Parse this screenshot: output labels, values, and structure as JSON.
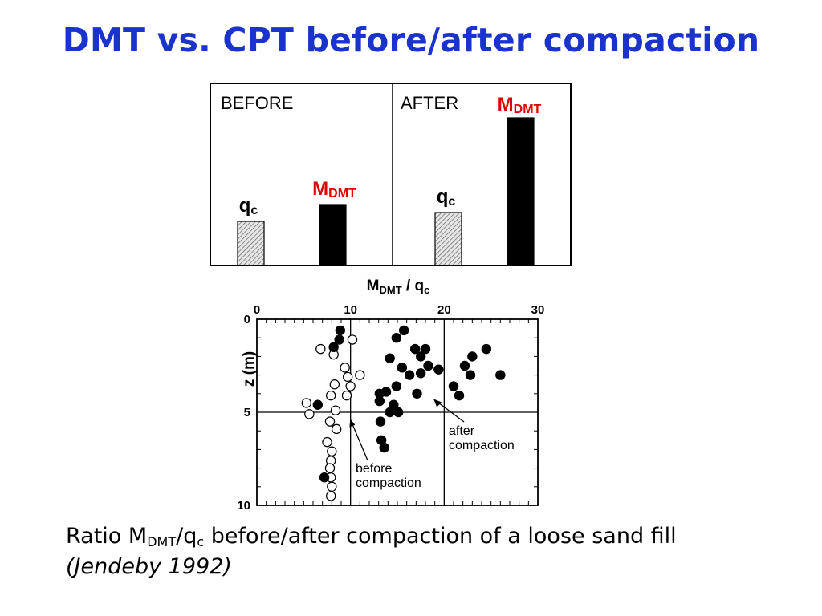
{
  "title": "DMT vs. CPT before/after compaction",
  "colors": {
    "title": "#1a33cc",
    "mdmt_label": "#e00000",
    "bar_mdmt": "#000000",
    "bar_qc_hatch": "#555555"
  },
  "bar_panel": {
    "panels": [
      {
        "label": "BEFORE",
        "bars": [
          {
            "series": "qc",
            "label_main": "q",
            "label_sub": "c",
            "value": 55
          },
          {
            "series": "M_DMT",
            "label_main": "M",
            "label_sub": "DMT",
            "value": 76
          }
        ]
      },
      {
        "label": "AFTER",
        "bars": [
          {
            "series": "qc",
            "label_main": "q",
            "label_sub": "c",
            "value": 66
          },
          {
            "series": "M_DMT",
            "label_main": "M",
            "label_sub": "DMT",
            "value": 184
          }
        ]
      }
    ]
  },
  "chart_data": [
    {
      "type": "bar",
      "categories": [
        "BEFORE",
        "AFTER"
      ],
      "series": [
        {
          "name": "qc",
          "values": [
            55,
            66
          ]
        },
        {
          "name": "M_DMT",
          "values": [
            76,
            184
          ]
        }
      ],
      "note": "values are relative heights; no numeric axis is printed"
    },
    {
      "type": "scatter",
      "x_axis_position": "top",
      "xlabel": {
        "main": "M",
        "sub": "DMT",
        "rest": " / q",
        "sub2": "c"
      },
      "ylabel": "z (m)",
      "xlim": [
        0,
        30
      ],
      "ylim": [
        10,
        0
      ],
      "x_ticks": [
        "0",
        "10",
        "20",
        "30"
      ],
      "y_ticks": [
        "0",
        "5",
        "10"
      ],
      "grid_lines": {
        "x": [
          10,
          20
        ],
        "y": [
          5
        ]
      },
      "series": [
        {
          "name": "before compaction",
          "marker": "open",
          "points": [
            [
              6.8,
              1.6
            ],
            [
              8.2,
              1.9
            ],
            [
              10.2,
              1.1
            ],
            [
              9.4,
              2.6
            ],
            [
              9.7,
              3.1
            ],
            [
              11.0,
              3.0
            ],
            [
              8.3,
              3.5
            ],
            [
              10.0,
              3.6
            ],
            [
              7.9,
              4.1
            ],
            [
              9.6,
              4.1
            ],
            [
              5.3,
              4.5
            ],
            [
              5.6,
              5.1
            ],
            [
              8.4,
              4.9
            ],
            [
              7.8,
              5.5
            ],
            [
              8.5,
              5.9
            ],
            [
              7.5,
              6.6
            ],
            [
              8.0,
              7.1
            ],
            [
              7.9,
              7.6
            ],
            [
              7.8,
              8.0
            ],
            [
              7.9,
              8.5
            ],
            [
              8.0,
              9.0
            ],
            [
              7.9,
              9.5
            ]
          ]
        },
        {
          "name": "after compaction",
          "marker": "filled",
          "points": [
            [
              8.9,
              0.6
            ],
            [
              8.8,
              1.1
            ],
            [
              8.2,
              1.5
            ],
            [
              6.5,
              4.6
            ],
            [
              7.2,
              8.5
            ],
            [
              15.7,
              0.6
            ],
            [
              14.9,
              1.0
            ],
            [
              16.9,
              1.6
            ],
            [
              14.2,
              2.1
            ],
            [
              18.0,
              1.6
            ],
            [
              17.5,
              2.0
            ],
            [
              15.5,
              2.6
            ],
            [
              18.3,
              2.5
            ],
            [
              16.3,
              3.0
            ],
            [
              17.5,
              2.9
            ],
            [
              19.4,
              2.7
            ],
            [
              23.0,
              2.0
            ],
            [
              24.5,
              1.6
            ],
            [
              22.2,
              2.5
            ],
            [
              22.8,
              3.0
            ],
            [
              26.0,
              3.0
            ],
            [
              14.9,
              3.6
            ],
            [
              21.0,
              3.6
            ],
            [
              13.8,
              3.9
            ],
            [
              17.1,
              4.0
            ],
            [
              13.1,
              4.0
            ],
            [
              13.1,
              4.4
            ],
            [
              14.6,
              4.6
            ],
            [
              14.2,
              5.0
            ],
            [
              15.1,
              5.0
            ],
            [
              13.2,
              5.5
            ],
            [
              13.3,
              6.5
            ],
            [
              13.6,
              6.9
            ],
            [
              21.6,
              4.1
            ]
          ]
        }
      ],
      "annotations": [
        {
          "text_lines": [
            "before",
            "compaction"
          ],
          "points_to": [
            9.8,
            5.2
          ]
        },
        {
          "text_lines": [
            "after",
            "compaction"
          ],
          "points_to": [
            18.7,
            4.2
          ]
        }
      ]
    }
  ],
  "caption": {
    "pre": "Ratio M",
    "sub1": "DMT",
    "mid": "/q",
    "sub2": "c",
    "post": " before/after compaction of a loose sand fill",
    "reference": "(Jendeby 1992)"
  }
}
